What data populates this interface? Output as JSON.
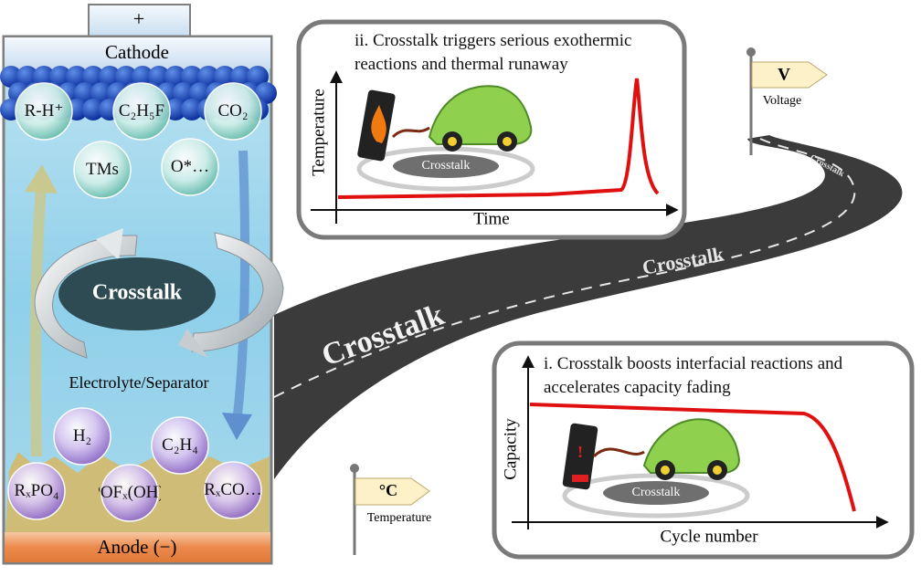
{
  "battery": {
    "plus": "+",
    "cathode": "Cathode",
    "cathode_species": [
      "R-H⁺",
      "C₂H₅F",
      "CO₂",
      "TMs",
      "O*…"
    ],
    "center": "Crosstalk",
    "electrolyte": "Electrolyte/Separator",
    "anode_species": [
      "H₂",
      "C₂H₄",
      "RₓPO₄",
      "POFₓ(OH)ᵧ",
      "RₓCO…"
    ],
    "anode": "Anode (−)"
  },
  "road": {
    "labels": [
      "Crosstalk",
      "Crosstalk",
      "Crosstalk"
    ]
  },
  "flags": [
    {
      "symbol": "V",
      "label": "Voltage"
    },
    {
      "symbol": "°C",
      "label": "Temperature"
    }
  ],
  "panels": [
    {
      "title": "ii. Crosstalk triggers serious exothermic reactions and thermal runaway",
      "y_axis": "Temperature",
      "x_axis": "Time",
      "badge": "Crosstalk"
    },
    {
      "title": "i. Crosstalk boosts interfacial reactions and accelerates capacity fading",
      "y_axis": "Capacity",
      "x_axis": "Cycle number",
      "badge": "Crosstalk"
    }
  ]
}
